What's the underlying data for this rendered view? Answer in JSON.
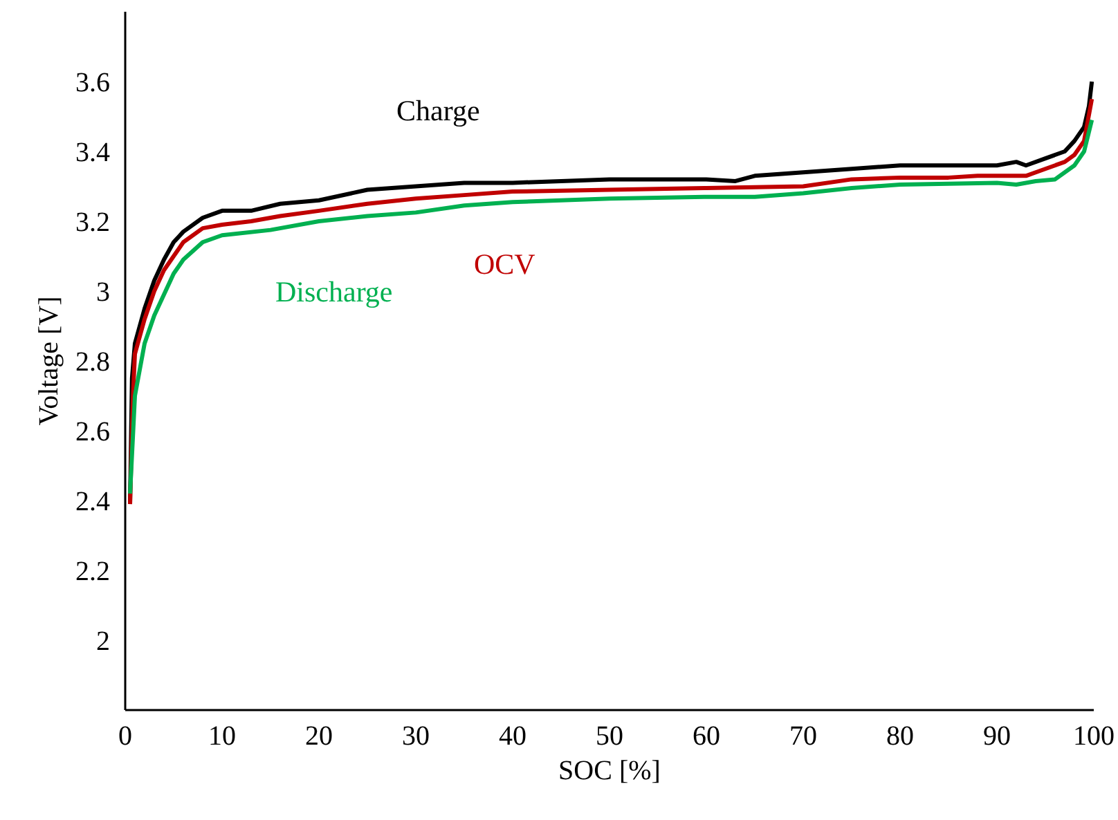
{
  "chart_data": {
    "type": "line",
    "xlabel": "SOC [%]",
    "ylabel": "Voltage [V]",
    "xlim": [
      0,
      100
    ],
    "xticks": [
      0,
      10,
      20,
      30,
      40,
      50,
      60,
      70,
      80,
      90,
      100
    ],
    "ylim": [
      1.8,
      3.8
    ],
    "yticks": [
      2,
      2.2,
      2.4,
      2.6,
      2.8,
      3,
      3.2,
      3.4,
      3.6
    ],
    "grid": false,
    "legend": false,
    "marker": "none",
    "line_style": "solid",
    "series": [
      {
        "name": "Charge",
        "color": "#000000",
        "x": [
          0.5,
          0.7,
          1,
          2,
          3,
          4,
          5,
          6,
          8,
          10,
          13,
          16,
          20,
          25,
          30,
          35,
          40,
          50,
          60,
          63,
          65,
          70,
          75,
          80,
          90,
          92,
          93,
          95,
          97,
          98,
          99,
          99.5,
          99.8
        ],
        "values": [
          2.39,
          2.75,
          2.85,
          2.95,
          3.03,
          3.09,
          3.14,
          3.17,
          3.21,
          3.23,
          3.23,
          3.25,
          3.26,
          3.29,
          3.3,
          3.31,
          3.31,
          3.32,
          3.32,
          3.315,
          3.33,
          3.34,
          3.35,
          3.36,
          3.36,
          3.37,
          3.36,
          3.38,
          3.4,
          3.43,
          3.47,
          3.53,
          3.6
        ]
      },
      {
        "name": "OCV",
        "color": "#c00000",
        "x": [
          0.5,
          0.8,
          1,
          2,
          3,
          4,
          5,
          6,
          8,
          10,
          13,
          16,
          20,
          25,
          30,
          35,
          40,
          50,
          60,
          70,
          75,
          80,
          85,
          88,
          93,
          95,
          97,
          98,
          99,
          99.8
        ],
        "values": [
          2.39,
          2.7,
          2.82,
          2.92,
          3.0,
          3.06,
          3.1,
          3.14,
          3.18,
          3.19,
          3.2,
          3.215,
          3.23,
          3.25,
          3.265,
          3.275,
          3.285,
          3.29,
          3.295,
          3.3,
          3.32,
          3.325,
          3.325,
          3.33,
          3.33,
          3.35,
          3.37,
          3.39,
          3.43,
          3.55
        ]
      },
      {
        "name": "Discharge",
        "color": "#00b050",
        "x": [
          0.5,
          1,
          2,
          3,
          4,
          5,
          6,
          8,
          10,
          15,
          20,
          25,
          30,
          35,
          40,
          50,
          60,
          65,
          70,
          75,
          80,
          90,
          92,
          94,
          96,
          98,
          99,
          99.8
        ],
        "values": [
          2.42,
          2.7,
          2.85,
          2.93,
          2.99,
          3.05,
          3.09,
          3.14,
          3.16,
          3.175,
          3.2,
          3.215,
          3.225,
          3.245,
          3.255,
          3.265,
          3.27,
          3.27,
          3.28,
          3.295,
          3.305,
          3.31,
          3.305,
          3.315,
          3.32,
          3.36,
          3.4,
          3.49
        ]
      }
    ]
  }
}
